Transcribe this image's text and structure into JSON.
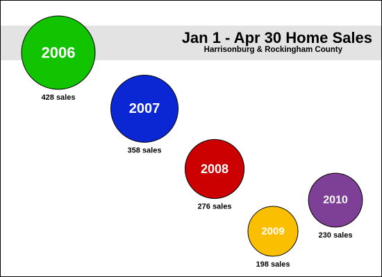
{
  "chart_data": {
    "type": "bubble",
    "title": "Jan 1 - Apr 30 Home Sales",
    "subtitle": "Harrisonburg & Rockingham County",
    "xlabel": "",
    "ylabel": "",
    "categories": [
      "2006",
      "2007",
      "2008",
      "2009",
      "2010"
    ],
    "values": [
      428,
      358,
      276,
      198,
      230
    ],
    "labels": [
      "428 sales",
      "358 sales",
      "276 sales",
      "198 sales",
      "230 sales"
    ],
    "colors": [
      "#12c400",
      "#0a27d3",
      "#cc0000",
      "#f9bf00",
      "#7e3f96"
    ],
    "grid": false,
    "legend": "none"
  }
}
